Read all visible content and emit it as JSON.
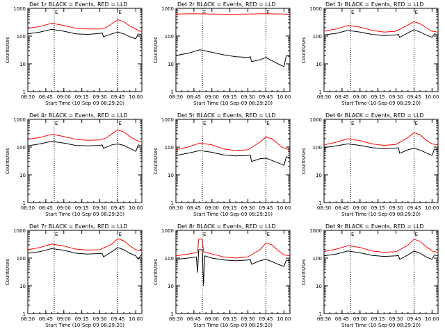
{
  "colors": {
    "events": "#000000",
    "lld": "#ff0000",
    "axes": "#000000",
    "background": "#ffffff"
  },
  "chart_data": [
    {
      "type": "line",
      "title": "Det 1r BLACK = Events, RED = LLD",
      "xlabel": "Start Time (10-Sep-09 08:29:20)",
      "ylabel": "Counts/sec",
      "yscale": "log",
      "ylim": [
        1,
        1000
      ],
      "xlim": [
        "08:30",
        "10:05"
      ],
      "x_ticks": [
        "08:30",
        "08:45",
        "09:00",
        "09:15",
        "09:30",
        "09:45",
        "10:00"
      ],
      "y_ticks": [
        "1",
        "10",
        "100",
        "1000"
      ],
      "markers": [
        {
          "label": "E",
          "time": "08:52"
        },
        {
          "label": "E",
          "time": "09:45"
        }
      ],
      "series": [
        {
          "name": "LLD",
          "color": "red",
          "x": [
            "08:30",
            "08:40",
            "08:50",
            "09:00",
            "09:10",
            "09:20",
            "09:30",
            "09:35",
            "09:40",
            "09:45",
            "09:50",
            "09:55",
            "10:00",
            "10:03",
            "10:05"
          ],
          "values": [
            190,
            220,
            290,
            240,
            190,
            180,
            180,
            200,
            280,
            390,
            330,
            230,
            180,
            150,
            150
          ]
        },
        {
          "name": "Events",
          "color": "black",
          "x": [
            "08:30",
            "08:40",
            "08:50",
            "09:00",
            "09:10",
            "09:20",
            "09:30",
            "09:32",
            "09:33",
            "09:40",
            "09:45",
            "09:50",
            "09:55",
            "10:00",
            "10:02",
            "10:05"
          ],
          "values": [
            120,
            140,
            175,
            150,
            120,
            115,
            125,
            130,
            95,
            120,
            140,
            120,
            95,
            80,
            120,
            110
          ]
        }
      ]
    },
    {
      "type": "line",
      "title": "Det 2r BLACK = Events, RED = LLD",
      "xlabel": "Start Time (10-Sep-09 08:29:20)",
      "ylabel": "Counts/sec",
      "yscale": "log",
      "ylim": [
        1,
        1000
      ],
      "xlim": [
        "08:30",
        "10:05"
      ],
      "x_ticks": [
        "08:30",
        "08:45",
        "09:00",
        "09:15",
        "09:30",
        "09:45",
        "10:00"
      ],
      "y_ticks": [
        "1",
        "10",
        "100",
        "1000"
      ],
      "markers": [
        {
          "label": "E",
          "time": "08:52"
        },
        {
          "label": "E",
          "time": "09:45"
        }
      ],
      "series": [
        {
          "name": "LLD",
          "color": "red",
          "x": [
            "08:30",
            "08:45",
            "09:00",
            "09:15",
            "09:30",
            "09:45",
            "10:00",
            "10:05"
          ],
          "values": [
            620,
            640,
            620,
            610,
            620,
            640,
            620,
            610
          ]
        },
        {
          "name": "Events",
          "color": "black",
          "x": [
            "08:30",
            "08:40",
            "08:50",
            "09:00",
            "09:10",
            "09:20",
            "09:30",
            "09:32",
            "09:33",
            "09:40",
            "09:45",
            "09:50",
            "09:55",
            "10:00",
            "10:02",
            "10:05"
          ],
          "values": [
            20,
            24,
            32,
            26,
            21,
            18,
            17,
            18,
            12,
            14,
            17,
            13,
            10,
            8,
            20,
            18
          ]
        }
      ]
    },
    {
      "type": "line",
      "title": "Det 3r BLACK = Events, RED = LLD",
      "xlabel": "Start Time (10-Sep-09 08:29:20)",
      "ylabel": "Counts/sec",
      "yscale": "log",
      "ylim": [
        1,
        1000
      ],
      "xlim": [
        "08:30",
        "10:05"
      ],
      "x_ticks": [
        "08:30",
        "08:45",
        "09:00",
        "09:15",
        "09:30",
        "09:45",
        "10:00"
      ],
      "y_ticks": [
        "1",
        "10",
        "100",
        "1000"
      ],
      "markers": [
        {
          "label": "E",
          "time": "08:52"
        },
        {
          "label": "E",
          "time": "09:45"
        }
      ],
      "series": [
        {
          "name": "LLD",
          "color": "red",
          "x": [
            "08:30",
            "08:40",
            "08:50",
            "09:00",
            "09:10",
            "09:20",
            "09:30",
            "09:40",
            "09:45",
            "09:50",
            "09:55",
            "10:00",
            "10:05"
          ],
          "values": [
            150,
            180,
            240,
            210,
            160,
            140,
            150,
            250,
            330,
            280,
            200,
            150,
            140
          ]
        },
        {
          "name": "Events",
          "color": "black",
          "x": [
            "08:30",
            "08:40",
            "08:50",
            "09:00",
            "09:10",
            "09:20",
            "09:30",
            "09:32",
            "09:33",
            "09:40",
            "09:45",
            "09:50",
            "09:55",
            "10:00",
            "10:02",
            "10:05"
          ],
          "values": [
            110,
            125,
            160,
            140,
            115,
            105,
            110,
            115,
            90,
            130,
            170,
            140,
            110,
            90,
            120,
            110
          ]
        }
      ]
    },
    {
      "type": "line",
      "title": "Det 4r BLACK = Events, RED = LLD",
      "xlabel": "Start Time (10-Sep-09 08:29:20)",
      "ylabel": "Counts/sec",
      "yscale": "log",
      "ylim": [
        1,
        1000
      ],
      "xlim": [
        "08:30",
        "10:05"
      ],
      "x_ticks": [
        "08:30",
        "08:45",
        "09:00",
        "09:15",
        "09:30",
        "09:45",
        "10:00"
      ],
      "y_ticks": [
        "1",
        "10",
        "100",
        "1000"
      ],
      "markers": [
        {
          "label": "E",
          "time": "08:52"
        },
        {
          "label": "E",
          "time": "09:45"
        }
      ],
      "series": [
        {
          "name": "LLD",
          "color": "red",
          "x": [
            "08:30",
            "08:40",
            "08:50",
            "09:00",
            "09:10",
            "09:20",
            "09:30",
            "09:35",
            "09:40",
            "09:45",
            "09:50",
            "09:55",
            "10:00",
            "10:05"
          ],
          "values": [
            190,
            220,
            290,
            240,
            190,
            175,
            180,
            210,
            300,
            420,
            350,
            240,
            180,
            150
          ]
        },
        {
          "name": "Events",
          "color": "black",
          "x": [
            "08:30",
            "08:40",
            "08:50",
            "09:00",
            "09:10",
            "09:20",
            "09:30",
            "09:32",
            "09:33",
            "09:40",
            "09:45",
            "09:50",
            "09:55",
            "10:00",
            "10:02",
            "10:05"
          ],
          "values": [
            110,
            130,
            160,
            140,
            115,
            110,
            115,
            120,
            90,
            120,
            130,
            115,
            90,
            70,
            120,
            110
          ]
        }
      ]
    },
    {
      "type": "line",
      "title": "Det 5r BLACK = Events, RED = LLD",
      "xlabel": "Start Time (10-Sep-09 08:29:20)",
      "ylabel": "Counts/sec",
      "yscale": "log",
      "ylim": [
        1,
        1000
      ],
      "xlim": [
        "08:30",
        "10:05"
      ],
      "x_ticks": [
        "08:30",
        "08:45",
        "09:00",
        "09:15",
        "09:30",
        "09:45",
        "10:00"
      ],
      "y_ticks": [
        "1",
        "10",
        "100",
        "1000"
      ],
      "markers": [
        {
          "label": "E",
          "time": "08:52"
        },
        {
          "label": "E",
          "time": "09:45"
        }
      ],
      "series": [
        {
          "name": "LLD",
          "color": "red",
          "x": [
            "08:30",
            "08:40",
            "08:50",
            "09:00",
            "09:10",
            "09:20",
            "09:30",
            "09:40",
            "09:45",
            "09:50",
            "09:55",
            "10:00",
            "10:05"
          ],
          "values": [
            80,
            100,
            140,
            120,
            85,
            75,
            80,
            150,
            230,
            200,
            130,
            90,
            80
          ]
        },
        {
          "name": "Events",
          "color": "black",
          "x": [
            "08:30",
            "08:40",
            "08:50",
            "09:00",
            "09:10",
            "09:20",
            "09:30",
            "09:32",
            "09:33",
            "09:40",
            "09:45",
            "09:50",
            "09:55",
            "10:00",
            "10:02",
            "10:05"
          ],
          "values": [
            50,
            60,
            75,
            65,
            52,
            48,
            50,
            52,
            30,
            38,
            40,
            33,
            27,
            22,
            45,
            40
          ]
        }
      ]
    },
    {
      "type": "line",
      "title": "Det 6r BLACK = Events, RED = LLD",
      "xlabel": "Start Time (10-Sep-09 08:29:20)",
      "ylabel": "Counts/sec",
      "yscale": "log",
      "ylim": [
        1,
        1000
      ],
      "xlim": [
        "08:30",
        "10:05"
      ],
      "x_ticks": [
        "08:30",
        "08:45",
        "09:00",
        "09:15",
        "09:30",
        "09:45",
        "10:00"
      ],
      "y_ticks": [
        "1",
        "10",
        "100",
        "1000"
      ],
      "markers": [
        {
          "label": "E",
          "time": "08:52"
        },
        {
          "label": "E",
          "time": "09:45"
        }
      ],
      "series": [
        {
          "name": "LLD",
          "color": "red",
          "x": [
            "08:30",
            "08:40",
            "08:50",
            "09:00",
            "09:10",
            "09:20",
            "09:30",
            "09:40",
            "09:45",
            "09:50",
            "09:55",
            "10:00",
            "10:05"
          ],
          "values": [
            120,
            150,
            200,
            170,
            130,
            115,
            125,
            220,
            330,
            280,
            180,
            130,
            120
          ]
        },
        {
          "name": "Events",
          "color": "black",
          "x": [
            "08:30",
            "08:40",
            "08:50",
            "09:00",
            "09:10",
            "09:20",
            "09:30",
            "09:32",
            "09:33",
            "09:40",
            "09:45",
            "09:50",
            "09:55",
            "10:00",
            "10:02",
            "10:05"
          ],
          "values": [
            95,
            110,
            130,
            115,
            95,
            88,
            92,
            95,
            60,
            80,
            90,
            78,
            62,
            50,
            85,
            80
          ]
        }
      ]
    },
    {
      "type": "line",
      "title": "Det 7r BLACK = Events, RED = LLD",
      "xlabel": "Start Time (10-Sep-09 08:29:20)",
      "ylabel": "Counts/sec",
      "yscale": "log",
      "ylim": [
        1,
        1000
      ],
      "xlim": [
        "08:30",
        "10:05"
      ],
      "x_ticks": [
        "08:30",
        "08:45",
        "09:00",
        "09:15",
        "09:30",
        "09:45",
        "10:00"
      ],
      "y_ticks": [
        "1",
        "10",
        "100",
        "1000"
      ],
      "markers": [
        {
          "label": "E",
          "time": "08:52"
        },
        {
          "label": "E",
          "time": "09:45"
        }
      ],
      "series": [
        {
          "name": "LLD",
          "color": "red",
          "x": [
            "08:30",
            "08:40",
            "08:50",
            "09:00",
            "09:10",
            "09:20",
            "09:30",
            "09:40",
            "09:45",
            "09:50",
            "09:55",
            "10:00",
            "10:05"
          ],
          "values": [
            200,
            240,
            320,
            270,
            210,
            195,
            200,
            320,
            500,
            420,
            280,
            200,
            180
          ]
        },
        {
          "name": "Events",
          "color": "black",
          "x": [
            "08:30",
            "08:40",
            "08:50",
            "09:00",
            "09:10",
            "09:20",
            "09:30",
            "09:32",
            "09:33",
            "09:40",
            "09:45",
            "09:50",
            "09:55",
            "10:00",
            "10:02",
            "10:05"
          ],
          "values": [
            150,
            170,
            220,
            190,
            150,
            140,
            145,
            150,
            110,
            170,
            240,
            200,
            150,
            120,
            90,
            140
          ]
        }
      ]
    },
    {
      "type": "line",
      "title": "Det 8r BLACK = Events, RED = LLD",
      "xlabel": "Start Time (10-Sep-09 08:29:20)",
      "ylabel": "Counts/sec",
      "yscale": "log",
      "ylim": [
        1,
        1000
      ],
      "xlim": [
        "08:30",
        "10:05"
      ],
      "x_ticks": [
        "08:30",
        "08:45",
        "09:00",
        "09:15",
        "09:30",
        "09:45",
        "10:00"
      ],
      "y_ticks": [
        "1",
        "10",
        "100",
        "1000"
      ],
      "markers": [
        {
          "label": "E",
          "time": "08:52"
        },
        {
          "label": "E",
          "time": "09:45"
        }
      ],
      "series": [
        {
          "name": "LLD",
          "color": "red",
          "x": [
            "08:30",
            "08:40",
            "08:48",
            "08:49",
            "08:52",
            "08:53",
            "09:00",
            "09:10",
            "09:20",
            "09:30",
            "09:40",
            "09:45",
            "09:50",
            "09:55",
            "10:00",
            "10:05"
          ],
          "values": [
            120,
            140,
            160,
            480,
            480,
            170,
            140,
            110,
            100,
            110,
            200,
            350,
            300,
            190,
            130,
            120
          ]
        },
        {
          "name": "Events",
          "color": "black",
          "x": [
            "08:30",
            "08:40",
            "08:47",
            "08:48",
            "08:49",
            "08:52",
            "08:53",
            "08:54",
            "09:00",
            "09:10",
            "09:20",
            "09:30",
            "09:32",
            "09:33",
            "09:40",
            "09:45",
            "09:50",
            "09:55",
            "10:00",
            "10:02",
            "10:05"
          ],
          "values": [
            90,
            100,
            110,
            30,
            200,
            200,
            10,
            120,
            100,
            85,
            80,
            85,
            88,
            60,
            80,
            90,
            75,
            60,
            50,
            85,
            80
          ]
        }
      ]
    },
    {
      "type": "line",
      "title": "Det 9r BLACK = Events, RED = LLD",
      "xlabel": "Start Time (10-Sep-09 08:29:20)",
      "ylabel": "Counts/sec",
      "yscale": "log",
      "ylim": [
        1,
        1000
      ],
      "xlim": [
        "08:30",
        "10:05"
      ],
      "x_ticks": [
        "08:30",
        "08:45",
        "09:00",
        "09:15",
        "09:30",
        "09:45",
        "10:00"
      ],
      "y_ticks": [
        "1",
        "10",
        "100",
        "1000"
      ],
      "markers": [
        {
          "label": "E",
          "time": "08:52"
        },
        {
          "label": "E",
          "time": "09:45"
        }
      ],
      "series": [
        {
          "name": "LLD",
          "color": "red",
          "x": [
            "08:30",
            "08:40",
            "08:50",
            "09:00",
            "09:10",
            "09:20",
            "09:30",
            "09:40",
            "09:45",
            "09:50",
            "09:55",
            "10:00",
            "10:05"
          ],
          "values": [
            170,
            210,
            280,
            240,
            180,
            160,
            170,
            290,
            480,
            400,
            260,
            180,
            160
          ]
        },
        {
          "name": "Events",
          "color": "black",
          "x": [
            "08:30",
            "08:40",
            "08:50",
            "09:00",
            "09:10",
            "09:20",
            "09:30",
            "09:32",
            "09:33",
            "09:40",
            "09:45",
            "09:50",
            "09:55",
            "10:00",
            "10:02",
            "10:05"
          ],
          "values": [
            120,
            140,
            180,
            155,
            125,
            115,
            120,
            125,
            90,
            130,
            180,
            150,
            110,
            90,
            130,
            120
          ]
        }
      ]
    }
  ]
}
